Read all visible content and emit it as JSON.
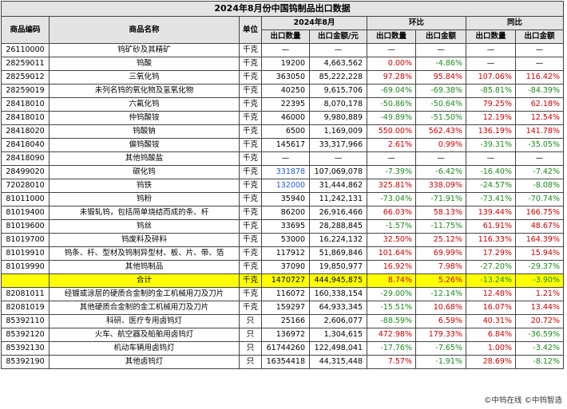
{
  "title": "2024年8月份中国钨制品出口数据",
  "headers": {
    "code": "商品编码",
    "name": "商品名称",
    "unit": "单位",
    "period": "2024年8月",
    "mom": "环比",
    "yoy": "同比",
    "qty": "出口数量",
    "amount_yuan": "出口金额/元",
    "amount": "出口金额"
  },
  "rows": [
    {
      "code": "26110000",
      "name": "钨矿砂及其精矿",
      "unit": "千克",
      "qty": "—",
      "amount": "—",
      "mom_qty": "—",
      "mom_amt": "—",
      "yoy_qty": "—",
      "yoy_amt": "—"
    },
    {
      "code": "28259011",
      "name": "钨酸",
      "unit": "千克",
      "qty": "19200",
      "amount": "4,663,562",
      "mom_qty": "0.00%",
      "mom_amt": "-4.86%",
      "yoy_qty": "—",
      "yoy_amt": "—"
    },
    {
      "code": "28259012",
      "name": "三氧化钨",
      "unit": "千克",
      "qty": "363050",
      "amount": "85,222,228",
      "mom_qty": "97.28%",
      "mom_amt": "95.84%",
      "yoy_qty": "107.06%",
      "yoy_amt": "116.42%"
    },
    {
      "code": "28259019",
      "name": "未列名钨的氧化物及氢氧化物",
      "unit": "千克",
      "qty": "40250",
      "amount": "9,615,706",
      "mom_qty": "-69.04%",
      "mom_amt": "-69.38%",
      "yoy_qty": "-85.81%",
      "yoy_amt": "-84.39%"
    },
    {
      "code": "28418010",
      "name": "六氟化钨",
      "unit": "千克",
      "qty": "22395",
      "amount": "8,070,178",
      "mom_qty": "-50.86%",
      "mom_amt": "-50.64%",
      "yoy_qty": "79.25%",
      "yoy_amt": "62.18%"
    },
    {
      "code": "28418010",
      "name": "仲钨酸铵",
      "unit": "千克",
      "qty": "46000",
      "amount": "9,980,889",
      "mom_qty": "-49.89%",
      "mom_amt": "-51.50%",
      "yoy_qty": "12.19%",
      "yoy_amt": "12.54%"
    },
    {
      "code": "28418020",
      "name": "钨酸钠",
      "unit": "千克",
      "qty": "6500",
      "amount": "1,169,009",
      "mom_qty": "550.00%",
      "mom_amt": "562.43%",
      "yoy_qty": "136.19%",
      "yoy_amt": "141.78%"
    },
    {
      "code": "28418040",
      "name": "偏钨酸铵",
      "unit": "千克",
      "qty": "145617",
      "amount": "33,317,966",
      "mom_qty": "2.61%",
      "mom_amt": "0.99%",
      "yoy_qty": "-39.31%",
      "yoy_amt": "-35.05%"
    },
    {
      "code": "28418090",
      "name": "其他钨酸盐",
      "unit": "千克",
      "qty": "—",
      "amount": "—",
      "mom_qty": "—",
      "mom_amt": "—",
      "yoy_qty": "—",
      "yoy_amt": "—"
    },
    {
      "code": "28499020",
      "name": "碳化钨",
      "unit": "千克",
      "qty": "331878",
      "amount": "107,069,078",
      "mom_qty": "-7.39%",
      "mom_amt": "-6.42%",
      "yoy_qty": "-16.40%",
      "yoy_amt": "-7.42%"
    },
    {
      "code": "72028010",
      "name": "钨铁",
      "unit": "千克",
      "qty": "132000",
      "amount": "31,444,862",
      "mom_qty": "325.81%",
      "mom_amt": "338.09%",
      "yoy_qty": "-24.57%",
      "yoy_amt": "-8.08%"
    },
    {
      "code": "81011000",
      "name": "钨粉",
      "unit": "千克",
      "qty": "35940",
      "amount": "11,242,131",
      "mom_qty": "-73.04%",
      "mom_amt": "-71.91%",
      "yoy_qty": "-73.41%",
      "yoy_amt": "-70.74%"
    },
    {
      "code": "81019400",
      "name": "未锻轧钨，包括简单烧结而成的条、杆",
      "unit": "千克",
      "qty": "86200",
      "amount": "26,916,466",
      "mom_qty": "66.03%",
      "mom_amt": "58.13%",
      "yoy_qty": "139.44%",
      "yoy_amt": "166.75%"
    },
    {
      "code": "81019600",
      "name": "钨丝",
      "unit": "千克",
      "qty": "33695",
      "amount": "28,288,845",
      "mom_qty": "-1.57%",
      "mom_amt": "-11.75%",
      "yoy_qty": "61.91%",
      "yoy_amt": "48.67%"
    },
    {
      "code": "81019700",
      "name": "钨废料及碎料",
      "unit": "千克",
      "qty": "53000",
      "amount": "16,224,132",
      "mom_qty": "32.50%",
      "mom_amt": "25.12%",
      "yoy_qty": "116.33%",
      "yoy_amt": "164.39%"
    },
    {
      "code": "81019910",
      "name": "钨条、杆、型材及钨制异型材、板、片、带、箔",
      "unit": "千克",
      "qty": "117912",
      "amount": "51,869,846",
      "mom_qty": "101.64%",
      "mom_amt": "69.99%",
      "yoy_qty": "17.29%",
      "yoy_amt": "15.94%"
    },
    {
      "code": "81019990",
      "name": "其他钨制品",
      "unit": "千克",
      "qty": "37090",
      "amount": "19,850,977",
      "mom_qty": "16.92%",
      "mom_amt": "7.98%",
      "yoy_qty": "-27.20%",
      "yoy_amt": "-29.37%"
    },
    {
      "code": "",
      "name": "合计",
      "unit": "千克",
      "qty": "1470727",
      "amount": "444,945,875",
      "mom_qty": "8.74%",
      "mom_amt": "5.26%",
      "yoy_qty": "-13.24%",
      "yoy_amt": "-3.90%",
      "total": true
    },
    {
      "code": "82081011",
      "name": "经镀或涂层的硬质合金制的金工机械用刀及刀片",
      "unit": "千克",
      "qty": "116072",
      "amount": "160,338,154",
      "mom_qty": "-29.00%",
      "mom_amt": "-12.14%",
      "yoy_qty": "12.48%",
      "yoy_amt": "1.21%"
    },
    {
      "code": "82081019",
      "name": "其他硬质合金制的金工机械用刀及刀片",
      "unit": "千克",
      "qty": "159297",
      "amount": "64,933,345",
      "mom_qty": "-15.51%",
      "mom_amt": "10.68%",
      "yoy_qty": "16.07%",
      "yoy_amt": "13.44%"
    },
    {
      "code": "85392110",
      "name": "科研、医疗专用卤钨灯",
      "unit": "只",
      "qty": "25166",
      "amount": "2,606,077",
      "mom_qty": "-88.59%",
      "mom_amt": "6.59%",
      "yoy_qty": "40.31%",
      "yoy_amt": "20.72%"
    },
    {
      "code": "85392120",
      "name": "火车、航空器及船舶用卤钨灯",
      "unit": "只",
      "qty": "136972",
      "amount": "1,304,615",
      "mom_qty": "472.98%",
      "mom_amt": "179.33%",
      "yoy_qty": "6.84%",
      "yoy_amt": "-36.59%"
    },
    {
      "code": "85392130",
      "name": "机动车辆用卤钨灯",
      "unit": "只",
      "qty": "61744260",
      "amount": "122,498,041",
      "mom_qty": "-17.76%",
      "mom_amt": "-7.65%",
      "yoy_qty": "1.00%",
      "yoy_amt": "-3.42%"
    },
    {
      "code": "85392190",
      "name": "其他卤钨灯",
      "unit": "只",
      "qty": "16354418",
      "amount": "44,315,448",
      "mom_qty": "7.57%",
      "mom_amt": "-1.91%",
      "yoy_qty": "28.69%",
      "yoy_amt": "-8.12%"
    }
  ],
  "footer": "©中钨在线 ©中钨智造",
  "colors": {
    "header_bg": "#e4e4e4",
    "total_bg": "#ffff00",
    "negative": "#1a8a1a",
    "positive": "#cc0000",
    "highlight_blue": "#1f5bd6"
  }
}
